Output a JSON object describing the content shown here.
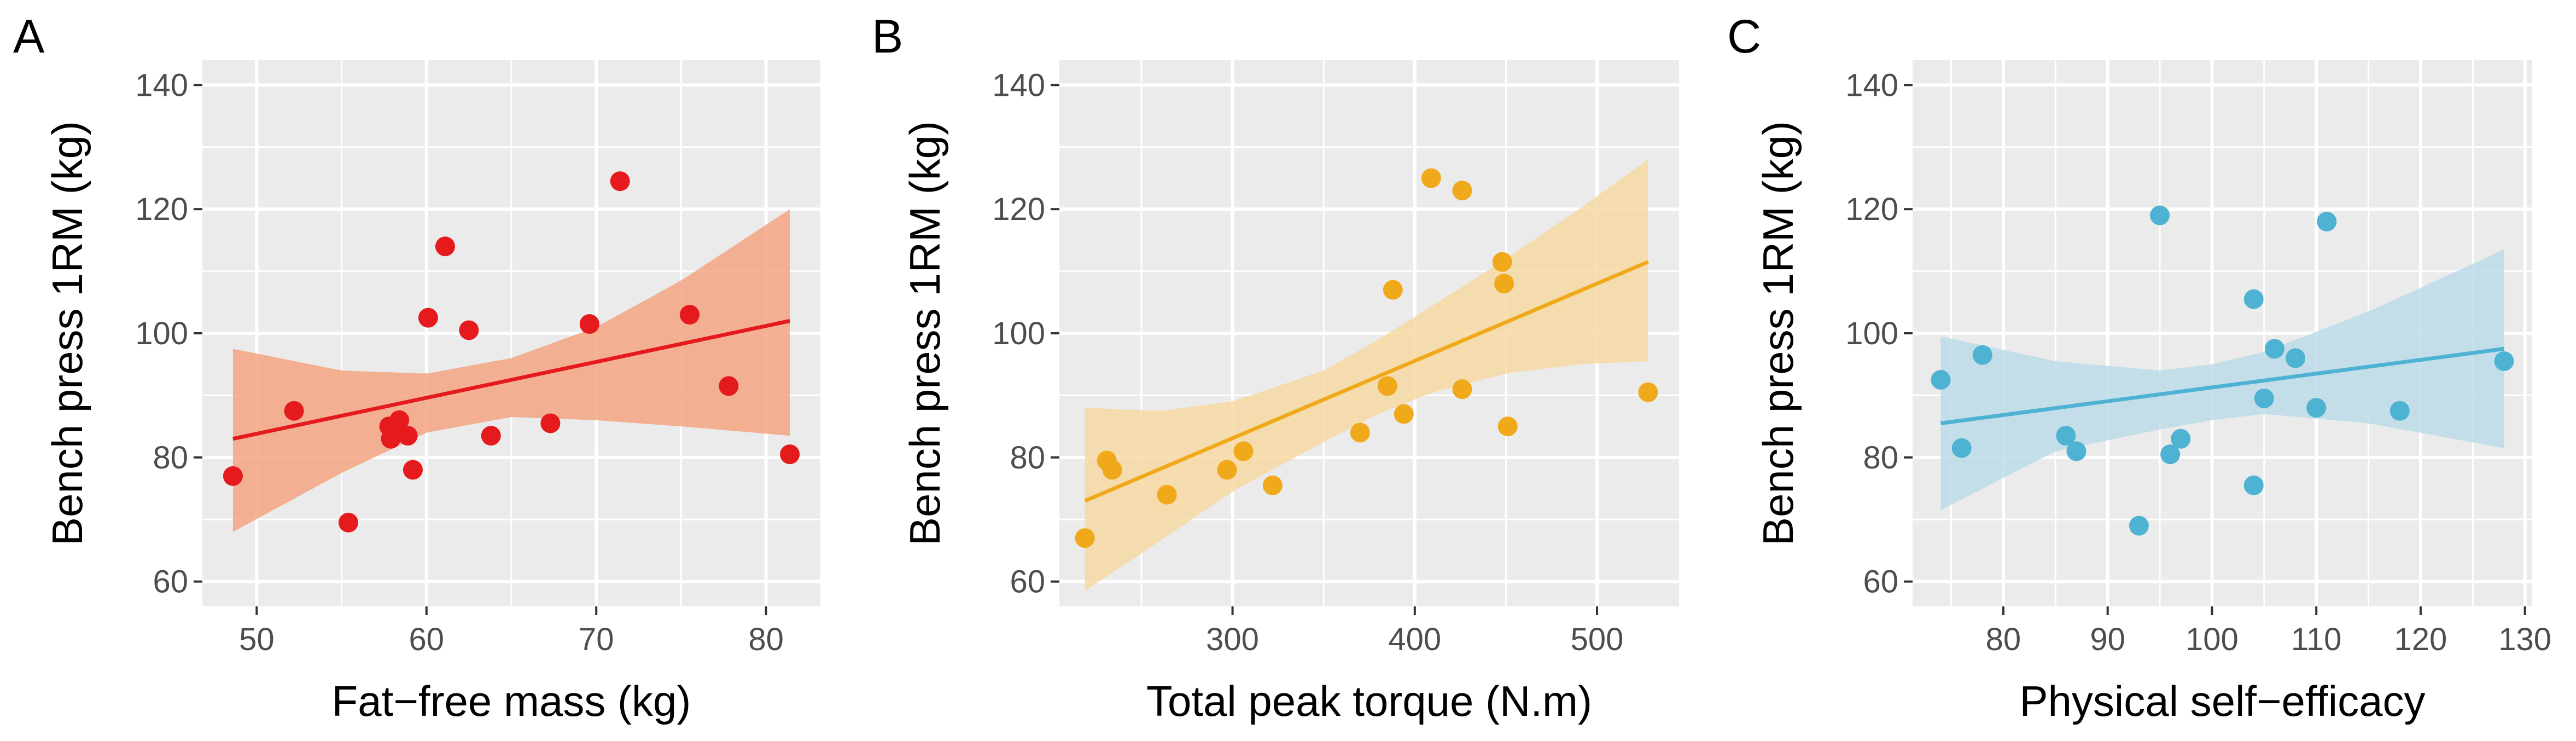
{
  "chart_data": [
    {
      "type": "scatter",
      "panel_label": "A",
      "xlabel": "Fat−free mass (kg)",
      "ylabel": "Bench press 1RM (kg)",
      "xlim": [
        46.8,
        83.2
      ],
      "ylim": [
        56,
        144
      ],
      "xticks": [
        "50",
        "60",
        "70",
        "80"
      ],
      "yticks": [
        "60",
        "80",
        "100",
        "120",
        "140"
      ],
      "color": "#e41a1c",
      "band_color": "#f4a582",
      "grid": true,
      "points": [
        {
          "x": 48.6,
          "y": 77.0
        },
        {
          "x": 52.2,
          "y": 87.5
        },
        {
          "x": 55.4,
          "y": 69.5
        },
        {
          "x": 57.8,
          "y": 85.0
        },
        {
          "x": 57.9,
          "y": 83.0
        },
        {
          "x": 58.2,
          "y": 84.5
        },
        {
          "x": 58.4,
          "y": 86.0
        },
        {
          "x": 58.9,
          "y": 83.5
        },
        {
          "x": 59.2,
          "y": 78.0
        },
        {
          "x": 60.1,
          "y": 102.5
        },
        {
          "x": 61.1,
          "y": 114.0
        },
        {
          "x": 62.5,
          "y": 100.5
        },
        {
          "x": 63.8,
          "y": 83.5
        },
        {
          "x": 67.3,
          "y": 85.5
        },
        {
          "x": 69.6,
          "y": 101.5
        },
        {
          "x": 71.4,
          "y": 124.5
        },
        {
          "x": 75.5,
          "y": 103.0
        },
        {
          "x": 77.8,
          "y": 91.5
        },
        {
          "x": 81.4,
          "y": 80.5
        }
      ],
      "fit": {
        "x": [
          48.6,
          81.4
        ],
        "y": [
          83.0,
          102.0
        ]
      },
      "band": {
        "x": [
          48.6,
          55,
          60,
          65,
          70,
          75,
          81.4
        ],
        "lower": [
          68.0,
          77.5,
          84.0,
          86.5,
          86.0,
          85.0,
          83.5
        ],
        "upper": [
          97.5,
          94.0,
          93.5,
          96.0,
          101.0,
          108.5,
          120.0
        ]
      }
    },
    {
      "type": "scatter",
      "panel_label": "B",
      "xlabel": "Total peak torque (N.m)",
      "ylabel": "Bench press 1RM (kg)",
      "xlim": [
        205,
        545
      ],
      "ylim": [
        56,
        144
      ],
      "xticks": [
        "300",
        "400",
        "500"
      ],
      "yticks": [
        "60",
        "80",
        "100",
        "120",
        "140"
      ],
      "color": "#f0a91a",
      "band_color": "#f6d9a3",
      "grid": true,
      "points": [
        {
          "x": 219,
          "y": 67.0
        },
        {
          "x": 231,
          "y": 79.5
        },
        {
          "x": 234,
          "y": 78.0
        },
        {
          "x": 264,
          "y": 74.0
        },
        {
          "x": 297,
          "y": 78.0
        },
        {
          "x": 306,
          "y": 81.0
        },
        {
          "x": 322,
          "y": 75.5
        },
        {
          "x": 370,
          "y": 84.0
        },
        {
          "x": 385,
          "y": 91.5
        },
        {
          "x": 388,
          "y": 107.0
        },
        {
          "x": 394,
          "y": 87.0
        },
        {
          "x": 409,
          "y": 125.0
        },
        {
          "x": 426,
          "y": 123.0
        },
        {
          "x": 426,
          "y": 91.0
        },
        {
          "x": 448,
          "y": 111.5
        },
        {
          "x": 449,
          "y": 108.0
        },
        {
          "x": 451,
          "y": 85.0
        },
        {
          "x": 528,
          "y": 90.5
        }
      ],
      "fit": {
        "x": [
          219,
          528
        ],
        "y": [
          73.0,
          111.5
        ]
      },
      "band": {
        "x": [
          219,
          260,
          300,
          350,
          380,
          410,
          450,
          490,
          528
        ],
        "lower": [
          58.5,
          66.5,
          74.5,
          82.5,
          87.0,
          90.5,
          93.5,
          95.0,
          95.5
        ],
        "upper": [
          88.0,
          87.5,
          89.0,
          94.0,
          99.0,
          104.5,
          112.0,
          120.0,
          128.0
        ]
      }
    },
    {
      "type": "scatter",
      "panel_label": "C",
      "xlabel": "Physical self−efficacy",
      "ylabel": "Bench press 1RM (kg)",
      "xlim": [
        71.3,
        130.7
      ],
      "ylim": [
        56,
        144
      ],
      "xticks": [
        "80",
        "90",
        "100",
        "110",
        "120",
        "130"
      ],
      "yticks": [
        "60",
        "80",
        "100",
        "120",
        "140"
      ],
      "color": "#4eb3d3",
      "band_color": "#bcdbe9",
      "grid": true,
      "points": [
        {
          "x": 74,
          "y": 92.5
        },
        {
          "x": 76,
          "y": 81.5
        },
        {
          "x": 78,
          "y": 96.5
        },
        {
          "x": 86,
          "y": 83.5
        },
        {
          "x": 87,
          "y": 81.0
        },
        {
          "x": 93,
          "y": 69.0
        },
        {
          "x": 95,
          "y": 119.0
        },
        {
          "x": 96,
          "y": 80.5
        },
        {
          "x": 97,
          "y": 83.0
        },
        {
          "x": 104,
          "y": 105.5
        },
        {
          "x": 104,
          "y": 75.5
        },
        {
          "x": 105,
          "y": 89.5
        },
        {
          "x": 106,
          "y": 97.5
        },
        {
          "x": 108,
          "y": 96.0
        },
        {
          "x": 110,
          "y": 88.0
        },
        {
          "x": 111,
          "y": 118.0
        },
        {
          "x": 118,
          "y": 87.5
        },
        {
          "x": 128,
          "y": 95.5
        }
      ],
      "fit": {
        "x": [
          74,
          128
        ],
        "y": [
          85.5,
          97.5
        ]
      },
      "band": {
        "x": [
          74,
          85,
          95,
          100,
          105,
          115,
          128
        ],
        "lower": [
          71.5,
          81.0,
          84.5,
          86.0,
          87.0,
          85.5,
          81.5
        ],
        "upper": [
          99.5,
          95.5,
          94.0,
          95.0,
          97.0,
          103.5,
          113.5
        ]
      }
    }
  ]
}
